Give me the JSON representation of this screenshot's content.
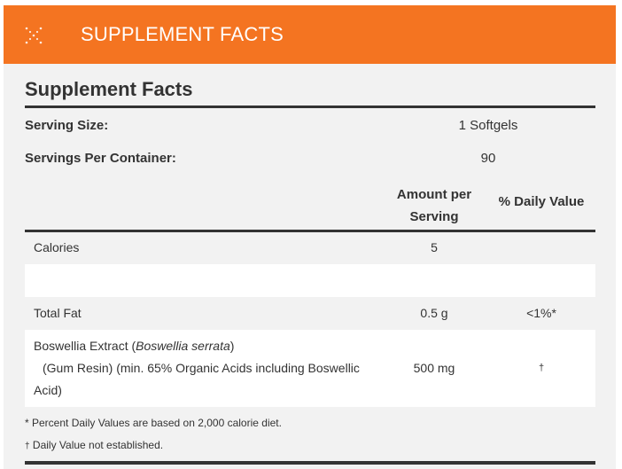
{
  "header": {
    "title": "SUPPLEMENT FACTS",
    "icon": "collapse-x-icon",
    "color": "#f47421"
  },
  "facts": {
    "title": "Supplement Facts",
    "serving_size_label": "Serving Size:",
    "serving_size_value": "1 Softgels",
    "servings_label": "Servings Per Container:",
    "servings_value": "90",
    "col_amount_line1": "Amount per",
    "col_amount_line2": "Serving",
    "col_dv": "% Daily Value",
    "rows": [
      {
        "name": "Calories",
        "amount": "5",
        "dv": ""
      },
      {
        "name": "",
        "amount": "",
        "dv": ""
      },
      {
        "name": "Total Fat",
        "amount": "0.5 g",
        "dv": "<1%*"
      }
    ],
    "boswellia": {
      "name_line1": "Boswellia Extract (",
      "name_italic": "Boswellia serrata",
      "name_line1_end": ")",
      "name_line2": "(Gum Resin) (min. 65% Organic Acids including Boswellic",
      "name_line3": "Acid)",
      "amount": "500 mg",
      "dv": "†"
    },
    "footnote1": "* Percent Daily Values are based on 2,000 calorie diet.",
    "footnote2_mark": "†",
    "footnote2": " Daily Value not established."
  }
}
